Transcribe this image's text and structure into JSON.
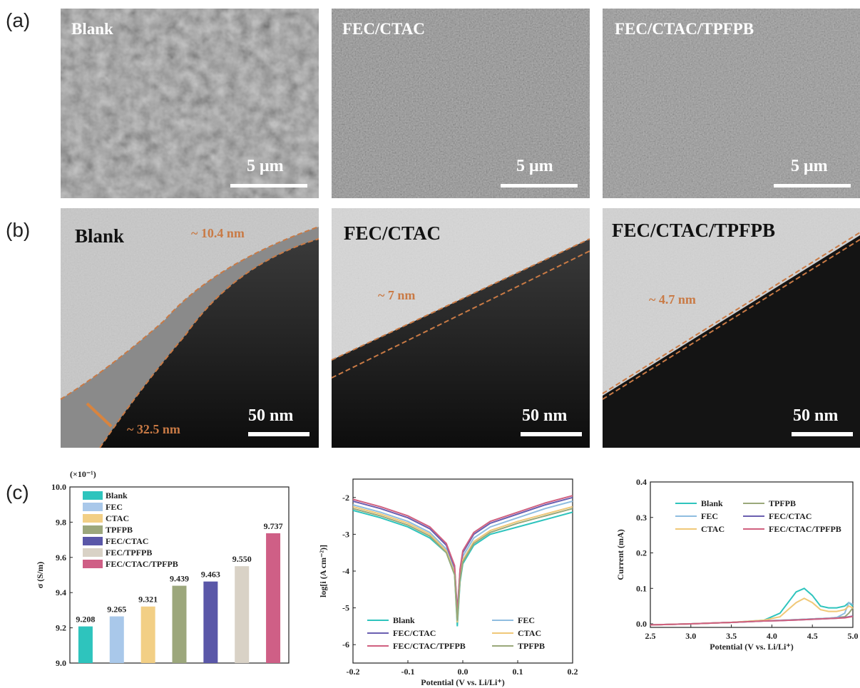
{
  "panel_labels": [
    "(a)",
    "(b)",
    "(c)"
  ],
  "sem_images": [
    {
      "label": "Blank",
      "scale_bar": "5 μm"
    },
    {
      "label": "FEC/CTAC",
      "scale_bar": "5 μm"
    },
    {
      "label": "FEC/CTAC/TPFPB",
      "scale_bar": "5 μm"
    }
  ],
  "tem_images": [
    {
      "label": "Blank",
      "scale_bar": "50 nm",
      "annotations": [
        "~ 10.4 nm",
        "~ 32.5 nm"
      ]
    },
    {
      "label": "FEC/CTAC",
      "scale_bar": "50 nm",
      "annotations": [
        "~ 7 nm"
      ]
    },
    {
      "label": "FEC/CTAC/TPFPB",
      "scale_bar": "50 nm",
      "annotations": [
        "~ 4.7 nm"
      ]
    }
  ],
  "chart_data": [
    {
      "type": "bar",
      "scale_note": "(×10⁻¹)",
      "ylabel": "σ (S/m)",
      "categories": [
        "Blank",
        "FEC",
        "CTAC",
        "TPFPB",
        "FEC/CTAC",
        "FEC/TPFPB",
        "FEC/CTAC/TPFPB"
      ],
      "values": [
        9.208,
        9.265,
        9.321,
        9.439,
        9.463,
        9.55,
        9.737
      ],
      "value_labels": [
        "9.208",
        "9.265",
        "9.321",
        "9.439",
        "9.463",
        "9.550",
        "9.737"
      ],
      "colors": [
        "#2ec4bd",
        "#a9c8ea",
        "#f2cf85",
        "#9ca77c",
        "#5a57a8",
        "#d9d2c6",
        "#cf5f86"
      ],
      "ylim": [
        9.0,
        10.0
      ],
      "yticks": [
        {
          "value": 9.0,
          "label": "9.0"
        },
        9.2,
        9.4,
        9.6,
        9.8,
        {
          "value": 10.0,
          "label": "10.0"
        }
      ],
      "legend": "upper left"
    },
    {
      "type": "line",
      "xlabel": "Potential (V vs. Li/Li⁺)",
      "ylabel": "log[i (A cm⁻²)]",
      "x": [
        -0.2,
        -0.15,
        -0.1,
        -0.06,
        -0.03,
        -0.015,
        -0.01,
        -0.005,
        0.0,
        0.02,
        0.05,
        0.1,
        0.15,
        0.2
      ],
      "series": [
        {
          "name": "Blank",
          "color": "#2ec4bd",
          "values": [
            -2.35,
            -2.55,
            -2.8,
            -3.1,
            -3.5,
            -4.1,
            -5.5,
            -4.3,
            -3.8,
            -3.3,
            -3.0,
            -2.8,
            -2.6,
            -2.4
          ]
        },
        {
          "name": "FEC",
          "color": "#8fbde0",
          "values": [
            -2.2,
            -2.4,
            -2.65,
            -2.95,
            -3.4,
            -4.0,
            -5.3,
            -4.1,
            -3.6,
            -3.1,
            -2.8,
            -2.55,
            -2.3,
            -2.1
          ]
        },
        {
          "name": "FEC/CTAC",
          "color": "#6a5fb0",
          "values": [
            -2.1,
            -2.3,
            -2.55,
            -2.85,
            -3.3,
            -3.9,
            -5.1,
            -4.0,
            -3.5,
            -3.0,
            -2.7,
            -2.45,
            -2.2,
            -2.0
          ]
        },
        {
          "name": "CTAC",
          "color": "#f0c878",
          "values": [
            -2.25,
            -2.45,
            -2.7,
            -3.0,
            -3.45,
            -4.05,
            -5.4,
            -4.2,
            -3.7,
            -3.2,
            -2.9,
            -2.65,
            -2.45,
            -2.25
          ]
        },
        {
          "name": "FEC/CTAC/TPFPB",
          "color": "#d0607f",
          "values": [
            -2.05,
            -2.25,
            -2.5,
            -2.8,
            -3.25,
            -3.85,
            -5.2,
            -3.95,
            -3.45,
            -2.95,
            -2.65,
            -2.4,
            -2.15,
            -1.95
          ]
        },
        {
          "name": "TPFPB",
          "color": "#9aa87a",
          "values": [
            -2.3,
            -2.5,
            -2.75,
            -3.05,
            -3.5,
            -4.1,
            -5.35,
            -4.25,
            -3.75,
            -3.25,
            -2.95,
            -2.7,
            -2.5,
            -2.3
          ]
        }
      ],
      "xlim": [
        -0.2,
        0.2
      ],
      "xticks": [
        -0.2,
        -0.1,
        {
          "value": 0.0,
          "label": "0.0"
        },
        0.1,
        0.2
      ],
      "ylim": [
        -6.5,
        -1.5
      ],
      "yticks": [
        -6,
        -5,
        -4,
        -3,
        -2
      ],
      "legend": "lower center"
    },
    {
      "type": "line",
      "xlabel": "Potential (V vs. Li/Li⁺)",
      "ylabel": "Current (mA)",
      "x": [
        2.5,
        3.0,
        3.5,
        3.9,
        4.1,
        4.2,
        4.3,
        4.4,
        4.5,
        4.6,
        4.7,
        4.8,
        4.9,
        4.95,
        5.0
      ],
      "series": [
        {
          "name": "Blank",
          "color": "#2ec4bd",
          "values": [
            -0.003,
            0.0,
            0.004,
            0.01,
            0.03,
            0.06,
            0.09,
            0.1,
            0.08,
            0.05,
            0.045,
            0.045,
            0.05,
            0.06,
            0.05
          ]
        },
        {
          "name": "TPFPB",
          "color": "#9aa87a",
          "values": [
            -0.003,
            0.0,
            0.004,
            0.008,
            0.01,
            0.011,
            0.012,
            0.013,
            0.014,
            0.015,
            0.016,
            0.018,
            0.02,
            0.03,
            0.045
          ]
        },
        {
          "name": "FEC",
          "color": "#8fbde0",
          "values": [
            -0.003,
            0.0,
            0.004,
            0.008,
            0.01,
            0.011,
            0.012,
            0.013,
            0.014,
            0.015,
            0.016,
            0.018,
            0.03,
            0.06,
            0.055
          ]
        },
        {
          "name": "FEC/CTAC",
          "color": "#6a5fb0",
          "values": [
            -0.003,
            0.0,
            0.004,
            0.008,
            0.009,
            0.01,
            0.011,
            0.012,
            0.013,
            0.014,
            0.015,
            0.016,
            0.018,
            0.02,
            0.022
          ]
        },
        {
          "name": "CTAC",
          "color": "#f0c878",
          "values": [
            -0.003,
            0.0,
            0.004,
            0.01,
            0.02,
            0.04,
            0.06,
            0.072,
            0.06,
            0.04,
            0.035,
            0.035,
            0.04,
            0.05,
            0.045
          ]
        },
        {
          "name": "FEC/CTAC/TPFPB",
          "color": "#d0607f",
          "values": [
            -0.003,
            0.0,
            0.004,
            0.008,
            0.009,
            0.01,
            0.011,
            0.012,
            0.013,
            0.014,
            0.015,
            0.016,
            0.017,
            0.019,
            0.021
          ]
        }
      ],
      "xlim": [
        2.5,
        5.0
      ],
      "xticks": [
        2.5,
        {
          "value": 3.0,
          "label": "3.0"
        },
        3.5,
        {
          "value": 4.0,
          "label": "4.0"
        },
        4.5,
        {
          "value": 5.0,
          "label": "5.0"
        }
      ],
      "ylim": [
        -0.01,
        0.4
      ],
      "yticks": [
        {
          "value": 0.0,
          "label": "0.0"
        },
        0.1,
        0.2,
        0.3,
        0.4
      ],
      "legend": "upper left"
    }
  ]
}
